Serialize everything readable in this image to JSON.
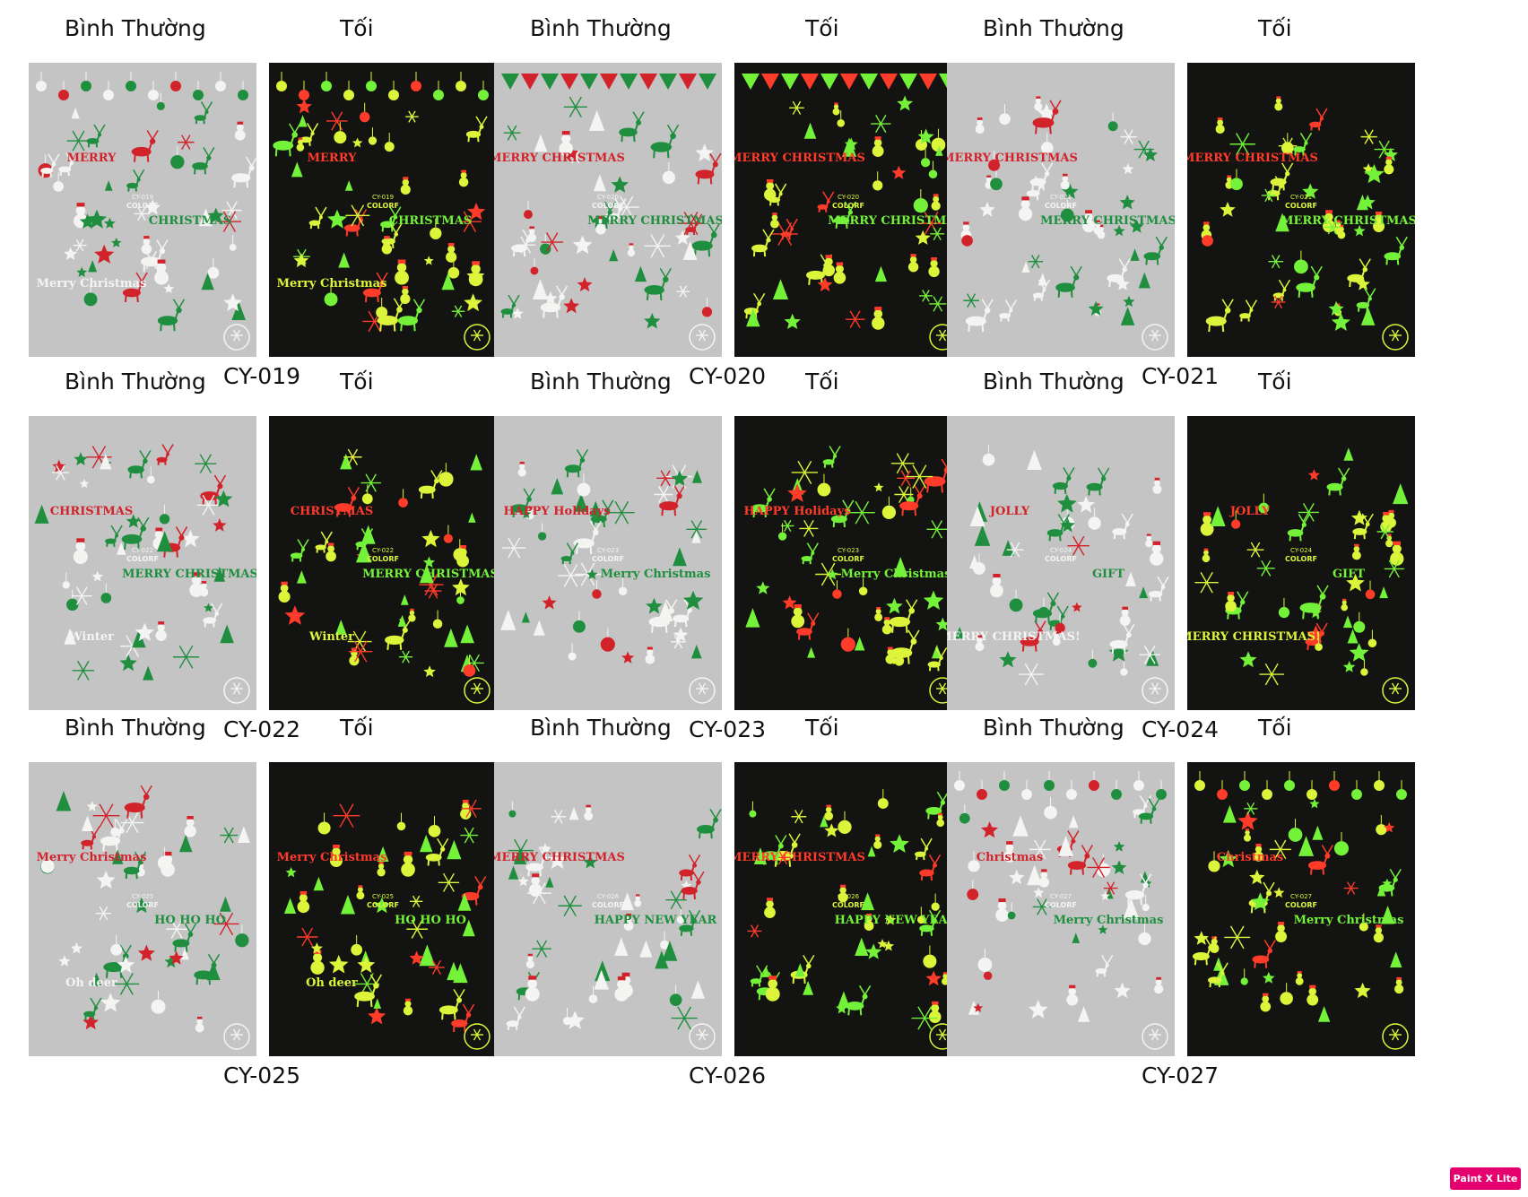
{
  "labels": {
    "normal": "Bình Thường",
    "dark": "Tối"
  },
  "colors": {
    "normal_bg": "#c4c4c4",
    "dark_bg": "#131311",
    "white_decal": "#f4f4f2",
    "red_decal": "#d2232b",
    "green_decal": "#1f8f3f",
    "glow_green": "#74f23a",
    "glow_yellow": "#dcf53a",
    "glow_red": "#ff3b2a",
    "logo_bg": "#e4006f"
  },
  "products": [
    {
      "code": "CY-019",
      "sheet_code": "CY-019",
      "brand": "COLORF",
      "motif": "merry-christmas-arch",
      "text_marks": [
        "MERRY",
        "CHRISTMAS",
        "Merry Christmas"
      ]
    },
    {
      "code": "CY-020",
      "sheet_code": "CY-020",
      "brand": "COLORF",
      "motif": "bunting-deer",
      "text_marks": [
        "MERRY CHRISTMAS",
        "MERRY CHRISTMAS"
      ]
    },
    {
      "code": "CY-021",
      "sheet_code": "CY-021",
      "brand": "COLORF",
      "motif": "snowman-trees",
      "text_marks": [
        "MERRY CHRISTMAS",
        "MERRY CHRISTMAS"
      ]
    },
    {
      "code": "CY-022",
      "sheet_code": "CY-022",
      "brand": "COLORF",
      "motif": "reindeer-sleigh",
      "text_marks": [
        "CHRISTMAS",
        "MERRY CHRISTMAS",
        "Winter"
      ]
    },
    {
      "code": "CY-023",
      "sheet_code": "CY-023",
      "brand": "COLORF",
      "motif": "santa-holidays",
      "text_marks": [
        "HAPPY Holidays",
        "Merry Christmas"
      ]
    },
    {
      "code": "CY-024",
      "sheet_code": "CY-024",
      "brand": "COLORF",
      "motif": "jolly-gift",
      "text_marks": [
        "JOLLY",
        "GIFT",
        "MERRY CHRISTMAS!"
      ]
    },
    {
      "code": "CY-025",
      "sheet_code": "CY-025",
      "brand": "COLORF",
      "motif": "branches-hohoho",
      "text_marks": [
        "Merry Christmas",
        "HO HO HO",
        "Oh deer"
      ]
    },
    {
      "code": "CY-026",
      "sheet_code": "CY-026",
      "brand": "COLORF",
      "motif": "reindeer-new-year",
      "text_marks": [
        "MERRY CHRISTMAS",
        "HAPPY NEW YEAR"
      ]
    },
    {
      "code": "CY-027",
      "sheet_code": "CY-027",
      "brand": "COLORF",
      "motif": "ornaments-trees",
      "text_marks": [
        "Christmas",
        "Merry Christmas"
      ]
    }
  ],
  "watermark": {
    "text": "Paint X Lite"
  }
}
